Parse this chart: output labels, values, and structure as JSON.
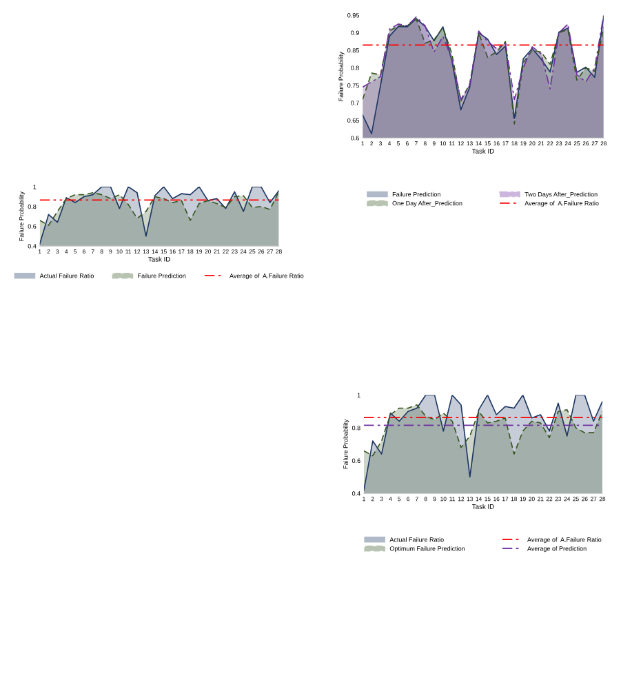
{
  "chart_data": [
    {
      "type": "area",
      "xlabel": "Task ID",
      "ylabel": "Failure Probability",
      "categories": [
        "1",
        "2",
        "3",
        "4",
        "5",
        "6",
        "7",
        "8",
        "9",
        "10",
        "11",
        "12",
        "13",
        "14",
        "15",
        "16",
        "17",
        "18",
        "19",
        "20",
        "21",
        "22",
        "23",
        "24",
        "25",
        "26",
        "27",
        "28"
      ],
      "ylim": [
        0.4,
        1
      ],
      "yticks": [
        0.4,
        0.6,
        0.8,
        1
      ],
      "grid": false,
      "legend": "bottom",
      "series": [
        {
          "name": "Actual Failure Ratio",
          "color": "#1f3864",
          "line_style": "solid",
          "values": [
            0.42,
            0.72,
            0.64,
            0.89,
            0.84,
            0.9,
            0.92,
            1.0,
            1.0,
            0.78,
            1.0,
            0.94,
            0.5,
            0.91,
            1.0,
            0.88,
            0.93,
            0.92,
            1.0,
            0.86,
            0.88,
            0.78,
            0.95,
            0.75,
            1.0,
            1.0,
            0.84,
            0.96
          ]
        },
        {
          "name": "Failure Prediction",
          "color": "#375623",
          "line_style": "dashed",
          "values": [
            0.66,
            0.61,
            0.75,
            0.88,
            0.92,
            0.92,
            0.94,
            0.92,
            0.88,
            0.92,
            0.82,
            0.68,
            0.75,
            0.9,
            0.88,
            0.84,
            0.86,
            0.66,
            0.83,
            0.86,
            0.83,
            0.79,
            0.9,
            0.91,
            0.79,
            0.8,
            0.77,
            0.95
          ]
        }
      ],
      "ref_lines": [
        {
          "axis": "y",
          "value": 0.865,
          "label": "Average of  A.Failure Ratio",
          "color": "#ff0000",
          "line_style": "dashdotdot"
        }
      ]
    },
    {
      "type": "area",
      "xlabel": "Task ID",
      "ylabel": "Failure Probability",
      "categories": [
        "1",
        "2",
        "3",
        "4",
        "5",
        "6",
        "7",
        "8",
        "9",
        "10",
        "11",
        "12",
        "13",
        "14",
        "15",
        "16",
        "17",
        "18",
        "19",
        "20",
        "21",
        "22",
        "23",
        "24",
        "25",
        "26",
        "27",
        "28"
      ],
      "ylim": [
        0.6,
        0.95
      ],
      "yticks": [
        0.6,
        0.65,
        0.7,
        0.75,
        0.8,
        0.85,
        0.9,
        0.95
      ],
      "grid": false,
      "legend": "bottom",
      "series": [
        {
          "name": "Failure Prediction",
          "color": "#1f3864",
          "line_style": "solid",
          "values": [
            0.665,
            0.612,
            0.75,
            0.89,
            0.918,
            0.917,
            0.94,
            0.918,
            0.877,
            0.917,
            0.82,
            0.68,
            0.745,
            0.9,
            0.882,
            0.838,
            0.862,
            0.655,
            0.826,
            0.855,
            0.825,
            0.788,
            0.902,
            0.913,
            0.787,
            0.802,
            0.773,
            0.945
          ]
        },
        {
          "name": "One Day After_Prediction",
          "color": "#375623",
          "line_style": "dashed",
          "values": [
            0.71,
            0.785,
            0.78,
            0.905,
            0.92,
            0.92,
            0.94,
            0.87,
            0.88,
            0.915,
            0.84,
            0.705,
            0.755,
            0.9,
            0.83,
            0.845,
            0.875,
            0.64,
            0.815,
            0.85,
            0.845,
            0.81,
            0.9,
            0.91,
            0.765,
            0.8,
            0.79,
            0.915
          ]
        },
        {
          "name": "Two Days After_Prediction",
          "color": "#7030a0",
          "line_style": "dashdot",
          "values": [
            0.745,
            0.76,
            0.775,
            0.91,
            0.925,
            0.92,
            0.945,
            0.92,
            0.845,
            0.89,
            0.825,
            0.71,
            0.75,
            0.905,
            0.875,
            0.855,
            0.87,
            0.71,
            0.8,
            0.86,
            0.84,
            0.74,
            0.9,
            0.925,
            0.78,
            0.76,
            0.8,
            0.95
          ]
        }
      ],
      "ref_lines": [
        {
          "axis": "y",
          "value": 0.865,
          "label": "Average of  A.Failure Ratio",
          "color": "#ff0000",
          "line_style": "dashdotdot"
        }
      ]
    },
    {
      "type": "area",
      "xlabel": "Task ID",
      "ylabel": "Failure Probability",
      "categories": [
        "1",
        "2",
        "3",
        "4",
        "5",
        "6",
        "7",
        "8",
        "9",
        "10",
        "11",
        "12",
        "13",
        "14",
        "15",
        "16",
        "17",
        "18",
        "19",
        "20",
        "21",
        "22",
        "23",
        "24",
        "25",
        "26",
        "27",
        "28"
      ],
      "ylim": [
        0.4,
        1
      ],
      "yticks": [
        0.4,
        0.6,
        0.8,
        1
      ],
      "grid": false,
      "legend": "bottom",
      "series": [
        {
          "name": "Actual Failure Ratio",
          "color": "#1f3864",
          "line_style": "solid",
          "values": [
            0.42,
            0.72,
            0.64,
            0.89,
            0.84,
            0.9,
            0.92,
            1.0,
            1.0,
            0.78,
            1.0,
            0.94,
            0.5,
            0.91,
            1.0,
            0.88,
            0.93,
            0.92,
            1.0,
            0.86,
            0.88,
            0.78,
            0.95,
            0.75,
            1.0,
            1.0,
            0.84,
            0.96
          ]
        },
        {
          "name": "Optimum Failure Prediction",
          "color": "#375623",
          "line_style": "dashed",
          "values": [
            0.66,
            0.63,
            0.72,
            0.88,
            0.92,
            0.92,
            0.94,
            0.87,
            0.85,
            0.89,
            0.84,
            0.68,
            0.75,
            0.9,
            0.83,
            0.84,
            0.86,
            0.64,
            0.78,
            0.84,
            0.83,
            0.74,
            0.9,
            0.91,
            0.8,
            0.77,
            0.77,
            0.9
          ]
        }
      ],
      "ref_lines": [
        {
          "axis": "y",
          "value": 0.863,
          "label": "Average of  A.Failure Ratio",
          "color": "#ff0000",
          "line_style": "dashdotdot"
        },
        {
          "axis": "y",
          "value": 0.815,
          "label": "Average of Prediction",
          "color": "#7030a0",
          "line_style": "dashdot"
        }
      ]
    }
  ]
}
